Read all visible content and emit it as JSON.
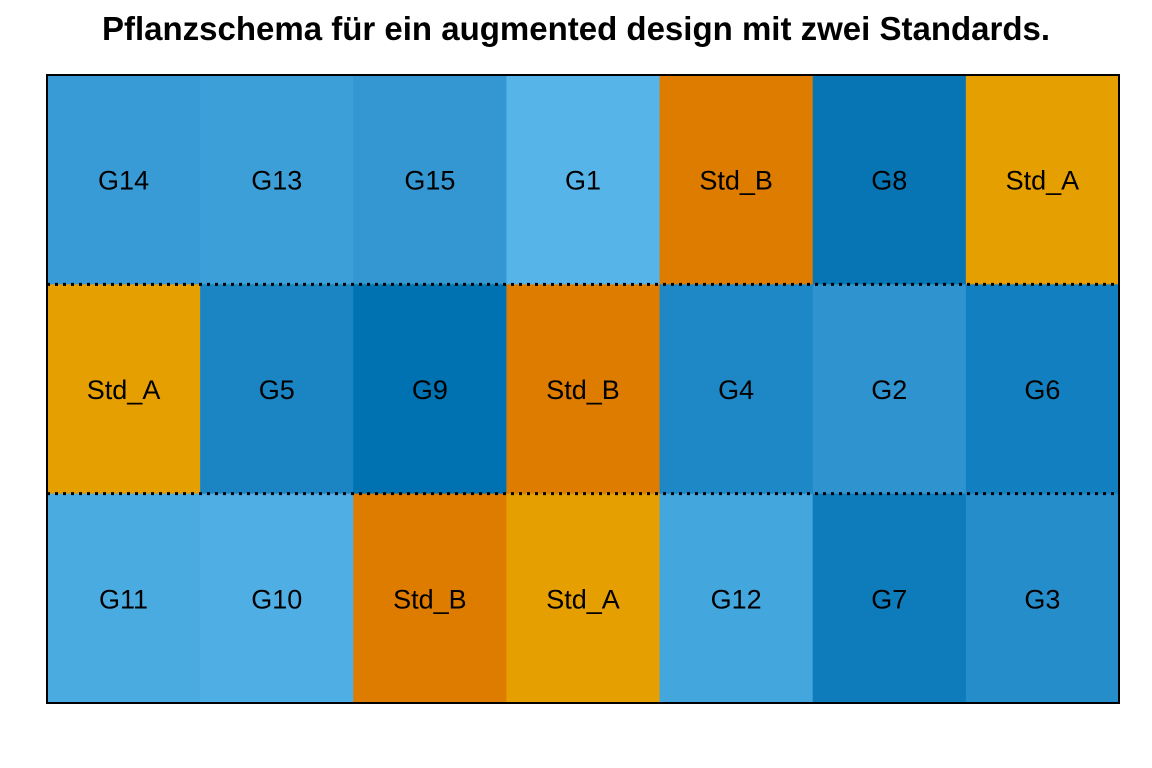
{
  "chart_data": {
    "type": "heatmap",
    "title": "Pflanzschema für ein augmented design mit zwei Standards.",
    "rows": 3,
    "cols": 7,
    "cells": [
      [
        {
          "label": "G14",
          "color": "#389BD5"
        },
        {
          "label": "G13",
          "color": "#3C9FD8"
        },
        {
          "label": "G15",
          "color": "#3497D2"
        },
        {
          "label": "G1",
          "color": "#56B4E9"
        },
        {
          "label": "Std_B",
          "color": "#DE7C00"
        },
        {
          "label": "G8",
          "color": "#0775B4"
        },
        {
          "label": "Std_A",
          "color": "#E69F00"
        }
      ],
      [
        {
          "label": "Std_A",
          "color": "#E69F00"
        },
        {
          "label": "G5",
          "color": "#1B84C3"
        },
        {
          "label": "G9",
          "color": "#0072B2"
        },
        {
          "label": "Std_B",
          "color": "#DE7C00"
        },
        {
          "label": "G4",
          "color": "#1E87C5"
        },
        {
          "label": "G2",
          "color": "#2F93D0"
        },
        {
          "label": "G6",
          "color": "#1280C0"
        }
      ],
      [
        {
          "label": "G11",
          "color": "#4AABE1"
        },
        {
          "label": "G10",
          "color": "#4FAEE4"
        },
        {
          "label": "Std_B",
          "color": "#DE7C00"
        },
        {
          "label": "Std_A",
          "color": "#E69F00"
        },
        {
          "label": "G12",
          "color": "#43A6DD"
        },
        {
          "label": "G7",
          "color": "#0E7BBB"
        },
        {
          "label": "G3",
          "color": "#268DCB"
        }
      ]
    ],
    "block_separators": "dotted",
    "legend": "none",
    "xlabel": "",
    "ylabel": ""
  }
}
